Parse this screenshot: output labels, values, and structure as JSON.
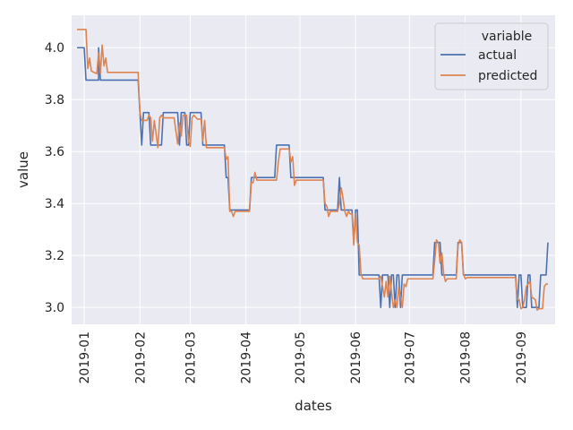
{
  "chart_data": {
    "type": "line",
    "xlabel": "dates",
    "ylabel": "value",
    "legend": {
      "title": "variable",
      "placement": "top-right"
    },
    "x_domain": [
      "2018-12-25",
      "2019-09-20"
    ],
    "ylim": [
      2.935,
      4.125
    ],
    "grid": true,
    "x_ticks": [
      {
        "label": "2019-01",
        "date": "2019-01-01"
      },
      {
        "label": "2019-02",
        "date": "2019-02-01"
      },
      {
        "label": "2019-03",
        "date": "2019-03-01"
      },
      {
        "label": "2019-04",
        "date": "2019-04-01"
      },
      {
        "label": "2019-05",
        "date": "2019-05-01"
      },
      {
        "label": "2019-06",
        "date": "2019-06-01"
      },
      {
        "label": "2019-07",
        "date": "2019-07-01"
      },
      {
        "label": "2019-08",
        "date": "2019-08-01"
      },
      {
        "label": "2019-09",
        "date": "2019-09-01"
      }
    ],
    "y_ticks": [
      "3.0",
      "3.2",
      "3.4",
      "3.6",
      "3.8",
      "4.0"
    ],
    "series": [
      {
        "name": "actual",
        "color": "#4c72b0",
        "points": [
          [
            "2018-12-28",
            4.0
          ],
          [
            "2019-01-01",
            4.0
          ],
          [
            "2019-01-02",
            3.875
          ],
          [
            "2019-01-09",
            3.875
          ],
          [
            "2019-01-09",
            4.0
          ],
          [
            "2019-01-10",
            3.875
          ],
          [
            "2019-01-31",
            3.875
          ],
          [
            "2019-02-01",
            3.75
          ],
          [
            "2019-02-02",
            3.625
          ],
          [
            "2019-02-03",
            3.75
          ],
          [
            "2019-02-06",
            3.75
          ],
          [
            "2019-02-07",
            3.625
          ],
          [
            "2019-02-13",
            3.625
          ],
          [
            "2019-02-14",
            3.75
          ],
          [
            "2019-02-22",
            3.75
          ],
          [
            "2019-02-23",
            3.625
          ],
          [
            "2019-02-24",
            3.75
          ],
          [
            "2019-02-26",
            3.75
          ],
          [
            "2019-02-27",
            3.625
          ],
          [
            "2019-02-28",
            3.625
          ],
          [
            "2019-03-01",
            3.75
          ],
          [
            "2019-03-07",
            3.75
          ],
          [
            "2019-03-08",
            3.625
          ],
          [
            "2019-03-20",
            3.625
          ],
          [
            "2019-03-21",
            3.5
          ],
          [
            "2019-03-22",
            3.5
          ],
          [
            "2019-03-23",
            3.375
          ],
          [
            "2019-04-03",
            3.375
          ],
          [
            "2019-04-04",
            3.5
          ],
          [
            "2019-04-17",
            3.5
          ],
          [
            "2019-04-18",
            3.625
          ],
          [
            "2019-04-25",
            3.625
          ],
          [
            "2019-04-26",
            3.5
          ],
          [
            "2019-05-14",
            3.5
          ],
          [
            "2019-05-15",
            3.375
          ],
          [
            "2019-05-22",
            3.375
          ],
          [
            "2019-05-23",
            3.5
          ],
          [
            "2019-05-24",
            3.375
          ],
          [
            "2019-05-30",
            3.375
          ],
          [
            "2019-05-31",
            3.25
          ],
          [
            "2019-06-01",
            3.375
          ],
          [
            "2019-06-02",
            3.375
          ],
          [
            "2019-06-03",
            3.125
          ],
          [
            "2019-06-14",
            3.125
          ],
          [
            "2019-06-15",
            3.0
          ],
          [
            "2019-06-16",
            3.125
          ],
          [
            "2019-06-19",
            3.125
          ],
          [
            "2019-06-20",
            3.0
          ],
          [
            "2019-06-21",
            3.125
          ],
          [
            "2019-06-22",
            3.125
          ],
          [
            "2019-06-23",
            3.0
          ],
          [
            "2019-06-24",
            3.125
          ],
          [
            "2019-06-25",
            3.125
          ],
          [
            "2019-06-26",
            3.0
          ],
          [
            "2019-06-27",
            3.125
          ],
          [
            "2019-07-14",
            3.125
          ],
          [
            "2019-07-15",
            3.25
          ],
          [
            "2019-07-18",
            3.25
          ],
          [
            "2019-07-19",
            3.125
          ],
          [
            "2019-07-27",
            3.125
          ],
          [
            "2019-07-28",
            3.25
          ],
          [
            "2019-07-30",
            3.25
          ],
          [
            "2019-07-31",
            3.125
          ],
          [
            "2019-08-29",
            3.125
          ],
          [
            "2019-08-30",
            3.0
          ],
          [
            "2019-08-31",
            3.125
          ],
          [
            "2019-09-01",
            3.125
          ],
          [
            "2019-09-02",
            3.0
          ],
          [
            "2019-09-04",
            3.0
          ],
          [
            "2019-09-05",
            3.125
          ],
          [
            "2019-09-06",
            3.125
          ],
          [
            "2019-09-07",
            3.0
          ],
          [
            "2019-09-11",
            3.0
          ],
          [
            "2019-09-12",
            3.125
          ],
          [
            "2019-09-15",
            3.125
          ],
          [
            "2019-09-16",
            3.25
          ]
        ]
      },
      {
        "name": "predicted",
        "color": "#dd8452",
        "points": [
          [
            "2018-12-28",
            4.07
          ],
          [
            "2019-01-02",
            4.07
          ],
          [
            "2019-01-03",
            3.92
          ],
          [
            "2019-01-04",
            3.96
          ],
          [
            "2019-01-05",
            3.91
          ],
          [
            "2019-01-08",
            3.9
          ],
          [
            "2019-01-09",
            3.98
          ],
          [
            "2019-01-10",
            3.9
          ],
          [
            "2019-01-11",
            4.01
          ],
          [
            "2019-01-12",
            3.93
          ],
          [
            "2019-01-13",
            3.96
          ],
          [
            "2019-01-14",
            3.905
          ],
          [
            "2019-01-31",
            3.905
          ],
          [
            "2019-02-01",
            3.75
          ],
          [
            "2019-02-02",
            3.72
          ],
          [
            "2019-02-05",
            3.72
          ],
          [
            "2019-02-06",
            3.74
          ],
          [
            "2019-02-07",
            3.73
          ],
          [
            "2019-02-08",
            3.64
          ],
          [
            "2019-02-09",
            3.72
          ],
          [
            "2019-02-11",
            3.615
          ],
          [
            "2019-02-12",
            3.73
          ],
          [
            "2019-02-13",
            3.74
          ],
          [
            "2019-02-14",
            3.73
          ],
          [
            "2019-02-20",
            3.73
          ],
          [
            "2019-02-21",
            3.68
          ],
          [
            "2019-02-22",
            3.63
          ],
          [
            "2019-02-23",
            3.71
          ],
          [
            "2019-02-24",
            3.66
          ],
          [
            "2019-02-25",
            3.74
          ],
          [
            "2019-02-27",
            3.74
          ],
          [
            "2019-02-28",
            3.64
          ],
          [
            "2019-03-01",
            3.62
          ],
          [
            "2019-03-02",
            3.73
          ],
          [
            "2019-03-03",
            3.74
          ],
          [
            "2019-03-05",
            3.725
          ],
          [
            "2019-03-07",
            3.725
          ],
          [
            "2019-03-08",
            3.64
          ],
          [
            "2019-03-09",
            3.72
          ],
          [
            "2019-03-10",
            3.615
          ],
          [
            "2019-03-20",
            3.615
          ],
          [
            "2019-03-21",
            3.57
          ],
          [
            "2019-03-22",
            3.58
          ],
          [
            "2019-03-23",
            3.37
          ],
          [
            "2019-03-24",
            3.37
          ],
          [
            "2019-03-25",
            3.35
          ],
          [
            "2019-03-26",
            3.37
          ],
          [
            "2019-04-03",
            3.37
          ],
          [
            "2019-04-04",
            3.48
          ],
          [
            "2019-04-05",
            3.48
          ],
          [
            "2019-04-06",
            3.52
          ],
          [
            "2019-04-07",
            3.49
          ],
          [
            "2019-04-18",
            3.49
          ],
          [
            "2019-04-19",
            3.56
          ],
          [
            "2019-04-20",
            3.61
          ],
          [
            "2019-04-25",
            3.61
          ],
          [
            "2019-04-26",
            3.56
          ],
          [
            "2019-04-27",
            3.58
          ],
          [
            "2019-04-28",
            3.47
          ],
          [
            "2019-04-29",
            3.49
          ],
          [
            "2019-05-14",
            3.49
          ],
          [
            "2019-05-15",
            3.4
          ],
          [
            "2019-05-16",
            3.39
          ],
          [
            "2019-05-17",
            3.35
          ],
          [
            "2019-05-18",
            3.37
          ],
          [
            "2019-05-20",
            3.37
          ],
          [
            "2019-05-22",
            3.37
          ],
          [
            "2019-05-23",
            3.4
          ],
          [
            "2019-05-24",
            3.46
          ],
          [
            "2019-05-25",
            3.42
          ],
          [
            "2019-05-26",
            3.37
          ],
          [
            "2019-05-27",
            3.35
          ],
          [
            "2019-05-28",
            3.37
          ],
          [
            "2019-05-29",
            3.36
          ],
          [
            "2019-05-30",
            3.36
          ],
          [
            "2019-05-31",
            3.24
          ],
          [
            "2019-06-01",
            3.36
          ],
          [
            "2019-06-02",
            3.25
          ],
          [
            "2019-06-03",
            3.24
          ],
          [
            "2019-06-04",
            3.13
          ],
          [
            "2019-06-05",
            3.11
          ],
          [
            "2019-06-14",
            3.11
          ],
          [
            "2019-06-15",
            3.12
          ],
          [
            "2019-06-16",
            3.08
          ],
          [
            "2019-06-17",
            3.04
          ],
          [
            "2019-06-18",
            3.1
          ],
          [
            "2019-06-19",
            3.04
          ],
          [
            "2019-06-20",
            3.12
          ],
          [
            "2019-06-21",
            3.06
          ],
          [
            "2019-06-22",
            3.0
          ],
          [
            "2019-06-23",
            3.03
          ],
          [
            "2019-06-24",
            3.0
          ],
          [
            "2019-06-25",
            3.08
          ],
          [
            "2019-06-26",
            3.04
          ],
          [
            "2019-06-27",
            3.0
          ],
          [
            "2019-06-28",
            3.09
          ],
          [
            "2019-06-29",
            3.08
          ],
          [
            "2019-06-30",
            3.11
          ],
          [
            "2019-07-14",
            3.11
          ],
          [
            "2019-07-15",
            3.18
          ],
          [
            "2019-07-16",
            3.26
          ],
          [
            "2019-07-17",
            3.25
          ],
          [
            "2019-07-18",
            3.17
          ],
          [
            "2019-07-19",
            3.21
          ],
          [
            "2019-07-20",
            3.13
          ],
          [
            "2019-07-21",
            3.1
          ],
          [
            "2019-07-22",
            3.11
          ],
          [
            "2019-07-27",
            3.11
          ],
          [
            "2019-07-28",
            3.24
          ],
          [
            "2019-07-29",
            3.26
          ],
          [
            "2019-07-30",
            3.25
          ],
          [
            "2019-07-31",
            3.13
          ],
          [
            "2019-08-01",
            3.11
          ],
          [
            "2019-08-02",
            3.115
          ],
          [
            "2019-08-29",
            3.115
          ],
          [
            "2019-08-30",
            3.03
          ],
          [
            "2019-08-31",
            3.03
          ],
          [
            "2019-09-01",
            2.995
          ],
          [
            "2019-09-02",
            3.0
          ],
          [
            "2019-09-03",
            3.03
          ],
          [
            "2019-09-04",
            3.08
          ],
          [
            "2019-09-05",
            3.09
          ],
          [
            "2019-09-06",
            3.1
          ],
          [
            "2019-09-07",
            3.04
          ],
          [
            "2019-09-09",
            3.03
          ],
          [
            "2019-09-10",
            2.99
          ],
          [
            "2019-09-11",
            2.995
          ],
          [
            "2019-09-13",
            2.995
          ],
          [
            "2019-09-14",
            3.08
          ],
          [
            "2019-09-15",
            3.09
          ],
          [
            "2019-09-16",
            3.09
          ]
        ]
      }
    ]
  }
}
